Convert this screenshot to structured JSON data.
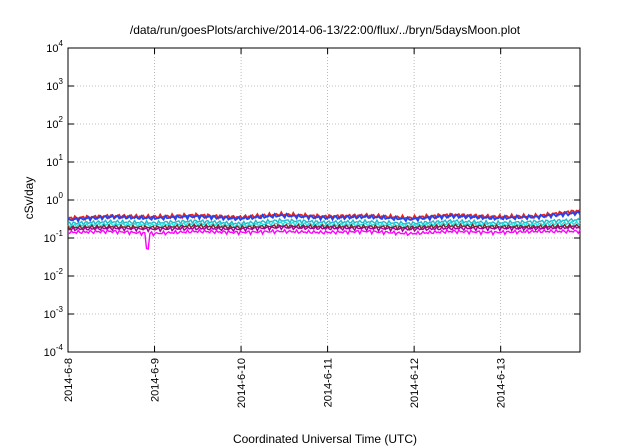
{
  "chart_data": {
    "type": "line",
    "title": "/data/run/goesPlots/archive/2014-06-13/22:00/flux/../bryn/5daysMoon.plot",
    "xlabel": "Coordinated Universal Time (UTC)",
    "ylabel": "cSv/day",
    "y_scale": "log",
    "ylim": [
      0.0001,
      10000
    ],
    "y_ticks": [
      {
        "exp": "-4",
        "value": 0.0001
      },
      {
        "exp": "-3",
        "value": 0.001
      },
      {
        "exp": "-2",
        "value": 0.01
      },
      {
        "exp": "-1",
        "value": 0.1
      },
      {
        "exp": "0",
        "value": 1
      },
      {
        "exp": "1",
        "value": 10
      },
      {
        "exp": "2",
        "value": 100
      },
      {
        "exp": "3",
        "value": 1000
      },
      {
        "exp": "4",
        "value": 10000
      }
    ],
    "x_range": [
      "2014-06-08",
      "2014-06-13T22:00"
    ],
    "x_ticks": [
      {
        "label": "2014-6-8",
        "date": "2014-06-08"
      },
      {
        "label": "2014-6-9",
        "date": "2014-06-09"
      },
      {
        "label": "2014-6-10",
        "date": "2014-06-10"
      },
      {
        "label": "2014-6-11",
        "date": "2014-06-11"
      },
      {
        "label": "2014-6-12",
        "date": "2014-06-12"
      },
      {
        "label": "2014-6-13",
        "date": "2014-06-13"
      }
    ],
    "grid": true,
    "legend": "none",
    "series": [
      {
        "color": "#e8221f",
        "values": [
          0.33,
          0.38,
          0.36,
          0.4,
          0.35,
          0.42,
          0.37,
          0.39,
          0.34,
          0.41,
          0.36,
          0.38,
          0.52
        ]
      },
      {
        "color": "#2244ee",
        "values": [
          0.3,
          0.36,
          0.33,
          0.37,
          0.32,
          0.39,
          0.34,
          0.36,
          0.31,
          0.38,
          0.33,
          0.36,
          0.46
        ]
      },
      {
        "color": "#22b8c8",
        "values": [
          0.24,
          0.27,
          0.25,
          0.28,
          0.24,
          0.29,
          0.26,
          0.27,
          0.24,
          0.28,
          0.25,
          0.27,
          0.3
        ]
      },
      {
        "color": "#20e0e0",
        "values": [
          0.21,
          0.23,
          0.22,
          0.24,
          0.21,
          0.25,
          0.22,
          0.23,
          0.21,
          0.24,
          0.22,
          0.23,
          0.25
        ]
      },
      {
        "color": "#7a2a22",
        "values": [
          0.19,
          0.2,
          0.19,
          0.21,
          0.19,
          0.21,
          0.2,
          0.2,
          0.19,
          0.21,
          0.2,
          0.2,
          0.21
        ]
      },
      {
        "color": "#a000a0",
        "values": [
          0.17,
          0.18,
          0.17,
          0.18,
          0.17,
          0.19,
          0.18,
          0.18,
          0.17,
          0.18,
          0.18,
          0.18,
          0.19
        ]
      },
      {
        "color": "#ff00ff",
        "values": [
          0.14,
          0.15,
          0.13,
          0.15,
          0.14,
          0.15,
          0.14,
          0.15,
          0.13,
          0.15,
          0.14,
          0.15,
          0.15
        ]
      }
    ]
  }
}
